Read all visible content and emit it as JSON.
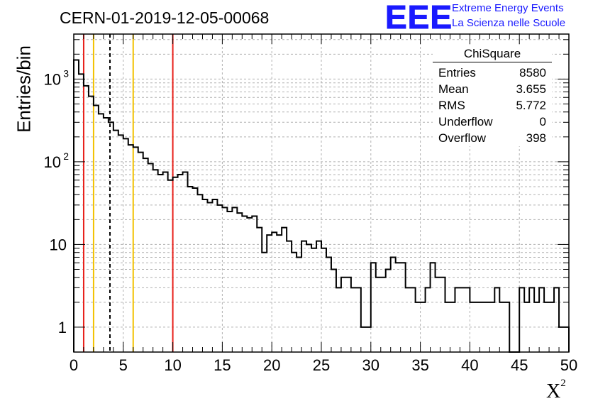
{
  "header": {
    "title": "CERN-01-2019-12-05-00068"
  },
  "logo": {
    "mark": "EEE",
    "line1": "Extreme Energy Events",
    "line2": "La Scienza nelle Scuole",
    "color": "#1a1aff"
  },
  "stats": {
    "title": "ChiSquare",
    "rows": [
      {
        "label": "Entries",
        "value": "8580"
      },
      {
        "label": "Mean",
        "value": "3.655"
      },
      {
        "label": "RMS",
        "value": "5.772"
      },
      {
        "label": "Underflow",
        "value": "0"
      },
      {
        "label": "Overflow",
        "value": "398"
      }
    ]
  },
  "chart_data": {
    "type": "histogram",
    "ylabel": "Entries/bin",
    "xlabel": "X",
    "xlabel_sup": "2",
    "xlim": [
      0,
      50
    ],
    "ylim": [
      0.5,
      3500
    ],
    "yscale": "log",
    "grid": true,
    "bin_width": 0.5,
    "x_ticks": [
      "0",
      "5",
      "10",
      "15",
      "20",
      "25",
      "30",
      "35",
      "40",
      "45",
      "50"
    ],
    "y_ticks": [
      {
        "value": 1,
        "label": "1"
      },
      {
        "value": 10,
        "label": "10"
      },
      {
        "value": 100,
        "label": "10",
        "sup": "2"
      },
      {
        "value": 1000,
        "label": "10",
        "sup": "3"
      }
    ],
    "values": [
      1700,
      1150,
      830,
      620,
      480,
      380,
      340,
      300,
      240,
      210,
      190,
      160,
      150,
      130,
      110,
      95,
      80,
      70,
      75,
      60,
      65,
      70,
      75,
      50,
      48,
      40,
      35,
      32,
      35,
      30,
      28,
      25,
      28,
      24,
      22,
      21,
      22,
      16,
      8,
      13,
      14,
      13,
      16,
      11,
      8,
      7,
      11,
      10,
      9,
      11,
      9,
      7,
      5,
      3,
      4,
      4,
      3,
      3,
      1,
      1,
      6,
      4,
      4,
      5,
      7,
      6,
      6,
      3,
      3,
      2,
      2,
      3,
      6,
      4,
      4,
      2,
      2,
      3,
      3,
      3,
      2,
      2,
      2,
      2,
      2,
      3,
      2,
      2,
      0,
      0,
      3,
      2,
      3,
      2,
      3,
      2,
      2,
      3,
      1,
      1
    ],
    "vlines": [
      {
        "x": 1,
        "color": "#e8201a",
        "style": "solid"
      },
      {
        "x": 2,
        "color": "#f2c100",
        "style": "solid"
      },
      {
        "x": 3.655,
        "color": "#000000",
        "style": "dashed"
      },
      {
        "x": 6,
        "color": "#f2c100",
        "style": "solid"
      },
      {
        "x": 10,
        "color": "#e8201a",
        "style": "solid"
      }
    ]
  }
}
